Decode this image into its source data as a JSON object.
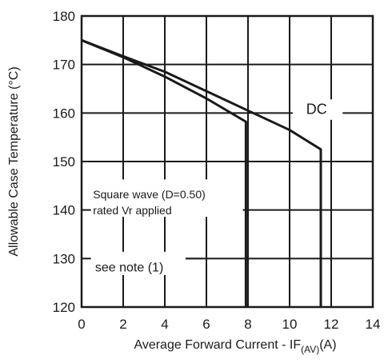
{
  "chart_data": {
    "type": "line",
    "title": "",
    "xlabel": "Average Forward Current - IF",
    "xlabel_sub": "(AV)",
    "xlabel_unit": "(A)",
    "ylabel": "Allowable Case Temperature (°C)",
    "xlim": [
      0,
      14
    ],
    "ylim": [
      120,
      180
    ],
    "x_ticks": [
      0,
      2,
      4,
      6,
      8,
      10,
      12,
      14
    ],
    "y_ticks": [
      120,
      130,
      140,
      150,
      160,
      170,
      180
    ],
    "x_tick_labels": [
      "0",
      "2",
      "4",
      "6",
      "8",
      "10",
      "12",
      "14"
    ],
    "y_tick_labels": [
      "120",
      "130",
      "140",
      "150",
      "160",
      "170",
      "180"
    ],
    "grid": true,
    "series": [
      {
        "name": "DC",
        "x": [
          0,
          2,
          4,
          6,
          8,
          10,
          11.5,
          11.5
        ],
        "y": [
          175,
          171.7,
          168.5,
          164.5,
          160.5,
          156.5,
          152.5,
          120
        ]
      },
      {
        "name": "Square wave (D=0.50)",
        "x": [
          0,
          2,
          4,
          6,
          7.9,
          7.9
        ],
        "y": [
          175,
          171.5,
          167.5,
          163,
          158.2,
          120
        ]
      }
    ],
    "annotations": {
      "dc_label": "DC",
      "square_wave_line1": "Square wave (D=0.50)",
      "square_wave_line2": "rated Vr applied",
      "note": "see note (1)"
    }
  }
}
